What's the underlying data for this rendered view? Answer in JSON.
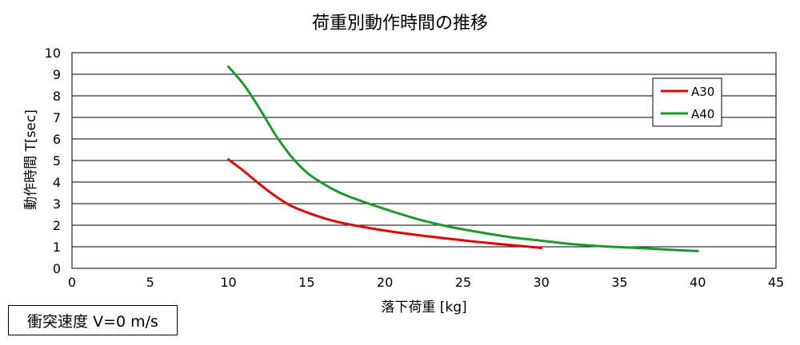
{
  "chart_data": {
    "type": "line",
    "title": "荷重別動作時間の推移",
    "xlabel": "落下荷重 [kg]",
    "ylabel": "動作時間 T[sec]",
    "xlim": [
      0,
      45
    ],
    "ylim": [
      0,
      10
    ],
    "xticks": [
      "0",
      "5",
      "10",
      "15",
      "20",
      "25",
      "30",
      "35",
      "40",
      "45"
    ],
    "yticks": [
      "0",
      "1",
      "2",
      "3",
      "4",
      "5",
      "6",
      "7",
      "8",
      "9",
      "10"
    ],
    "grid": "horizontal",
    "legend_position": "top-right",
    "series": [
      {
        "name": "A30",
        "color": "#e00000",
        "x": [
          10,
          11,
          12,
          13,
          14,
          15,
          16,
          17,
          18,
          20,
          22,
          24,
          26,
          28,
          30
        ],
        "y": [
          5.05,
          4.5,
          3.9,
          3.35,
          2.9,
          2.6,
          2.35,
          2.15,
          2.0,
          1.75,
          1.55,
          1.38,
          1.22,
          1.08,
          0.95
        ]
      },
      {
        "name": "A40",
        "color": "#1a9a2a",
        "x": [
          10,
          11,
          12,
          13,
          14,
          15,
          16,
          17,
          18,
          20,
          22,
          24,
          26,
          28,
          30,
          32,
          34,
          36,
          38,
          40
        ],
        "y": [
          9.35,
          8.5,
          7.4,
          6.2,
          5.2,
          4.45,
          3.95,
          3.55,
          3.25,
          2.75,
          2.3,
          1.95,
          1.68,
          1.45,
          1.28,
          1.12,
          1.02,
          0.95,
          0.87,
          0.8
        ]
      }
    ]
  },
  "note": "衝突速度 V=0 m/s"
}
